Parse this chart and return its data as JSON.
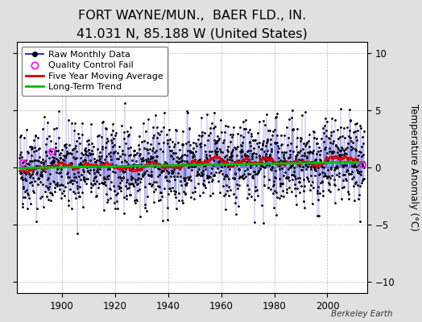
{
  "title": "FORT WAYNE/MUN.,  BAER FLD., IN.",
  "subtitle": "41.031 N, 85.188 W (United States)",
  "ylabel": "Temperature Anomaly (°C)",
  "attribution": "Berkeley Earth",
  "year_start": 1884,
  "year_end": 2013,
  "ylim": [
    -11,
    11
  ],
  "yticks": [
    -10,
    -5,
    0,
    5,
    10
  ],
  "fig_bg_color": "#e0e0e0",
  "plot_bg_color": "#ffffff",
  "raw_line_color": "#3333cc",
  "raw_dot_color": "#000000",
  "qc_fail_color": "#ff00ff",
  "moving_avg_color": "#dd0000",
  "trend_color": "#00bb00",
  "title_fontsize": 11.5,
  "subtitle_fontsize": 9,
  "axis_fontsize": 8.5,
  "legend_fontsize": 8,
  "seed": 42,
  "noise_std": 1.8,
  "trend_slope": 0.004,
  "trend_intercept": -0.05,
  "qc_fail_indices": [
    12,
    145,
    1550
  ]
}
